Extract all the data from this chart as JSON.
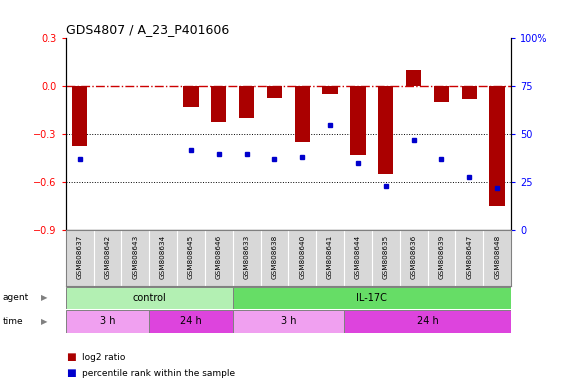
{
  "title": "GDS4807 / A_23_P401606",
  "samples": [
    "GSM808637",
    "GSM808642",
    "GSM808643",
    "GSM808634",
    "GSM808645",
    "GSM808646",
    "GSM808633",
    "GSM808638",
    "GSM808640",
    "GSM808641",
    "GSM808644",
    "GSM808635",
    "GSM808636",
    "GSM808639",
    "GSM808647",
    "GSM808648"
  ],
  "log2_ratio": [
    -0.37,
    0.0,
    0.0,
    0.0,
    -0.13,
    -0.22,
    -0.2,
    -0.07,
    -0.35,
    -0.05,
    -0.43,
    -0.55,
    0.1,
    -0.1,
    -0.08,
    -0.75
  ],
  "percentile_rank": [
    37,
    0,
    0,
    0,
    42,
    40,
    40,
    37,
    38,
    55,
    35,
    23,
    47,
    37,
    28,
    22
  ],
  "ylim_left": [
    -0.9,
    0.3
  ],
  "ylim_right": [
    0,
    100
  ],
  "yticks_left": [
    0.3,
    0.0,
    -0.3,
    -0.6,
    -0.9
  ],
  "yticks_right": [
    100,
    75,
    50,
    25,
    0
  ],
  "agent_groups": [
    {
      "label": "control",
      "start": 0,
      "end": 6,
      "color": "#b3f0b3"
    },
    {
      "label": "IL-17C",
      "start": 6,
      "end": 16,
      "color": "#66dd66"
    }
  ],
  "time_groups": [
    {
      "label": "3 h",
      "start": 0,
      "end": 3,
      "color": "#f0a0f0"
    },
    {
      "label": "24 h",
      "start": 3,
      "end": 6,
      "color": "#dd44dd"
    },
    {
      "label": "3 h",
      "start": 6,
      "end": 10,
      "color": "#f0a0f0"
    },
    {
      "label": "24 h",
      "start": 10,
      "end": 16,
      "color": "#dd44dd"
    }
  ],
  "bar_color": "#aa0000",
  "dot_color": "#0000cc",
  "hline_color": "#cc0000",
  "dotline_color": "#000000",
  "background_color": "#ffffff",
  "sample_bg_color": "#d8d8d8"
}
